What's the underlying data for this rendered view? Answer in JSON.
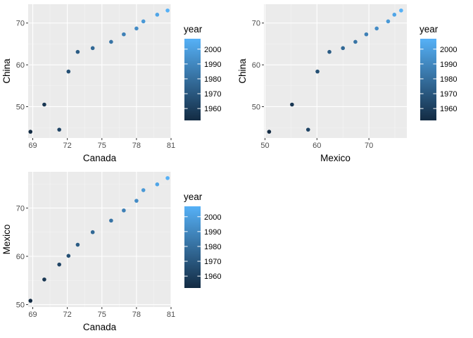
{
  "theme": {
    "panel_bg": "#ebebeb",
    "grid_major": "#ffffff",
    "grid_minor": "#f5f5f5",
    "tick_color": "#333333",
    "gradient_low": "#132b43",
    "gradient_high": "#56b1f7"
  },
  "chart_data": [
    {
      "type": "scatter",
      "xlabel": "Canada",
      "ylabel": "China",
      "xlim": [
        68.6,
        81.0
      ],
      "ylim": [
        42.5,
        74.5
      ],
      "xticks": [
        69,
        72,
        75,
        78,
        81
      ],
      "yticks": [
        50,
        60,
        70
      ],
      "color_variable": "year",
      "points": [
        {
          "x": 68.8,
          "y": 44.0,
          "year": 1952
        },
        {
          "x": 70.0,
          "y": 50.5,
          "year": 1957
        },
        {
          "x": 71.3,
          "y": 44.5,
          "year": 1962
        },
        {
          "x": 72.1,
          "y": 58.4,
          "year": 1967
        },
        {
          "x": 72.9,
          "y": 63.1,
          "year": 1972
        },
        {
          "x": 74.2,
          "y": 64.0,
          "year": 1977
        },
        {
          "x": 75.8,
          "y": 65.5,
          "year": 1982
        },
        {
          "x": 76.9,
          "y": 67.3,
          "year": 1987
        },
        {
          "x": 78.0,
          "y": 68.7,
          "year": 1992
        },
        {
          "x": 78.6,
          "y": 70.4,
          "year": 1997
        },
        {
          "x": 79.8,
          "y": 72.0,
          "year": 2002
        },
        {
          "x": 80.7,
          "y": 73.0,
          "year": 2007
        }
      ],
      "legend": {
        "title": "year",
        "range": [
          1952,
          2007
        ],
        "ticks": [
          1960,
          1970,
          1980,
          1990,
          2000
        ],
        "position": "right"
      }
    },
    {
      "type": "scatter",
      "xlabel": "Mexico",
      "ylabel": "China",
      "xlim": [
        49.8,
        77.3
      ],
      "ylim": [
        42.5,
        74.5
      ],
      "xticks": [
        50,
        60,
        70
      ],
      "yticks": [
        50,
        60,
        70
      ],
      "color_variable": "year",
      "points": [
        {
          "x": 50.8,
          "y": 44.0,
          "year": 1952
        },
        {
          "x": 55.2,
          "y": 50.5,
          "year": 1957
        },
        {
          "x": 58.3,
          "y": 44.5,
          "year": 1962
        },
        {
          "x": 60.1,
          "y": 58.4,
          "year": 1967
        },
        {
          "x": 62.4,
          "y": 63.1,
          "year": 1972
        },
        {
          "x": 65.0,
          "y": 64.0,
          "year": 1977
        },
        {
          "x": 67.4,
          "y": 65.5,
          "year": 1982
        },
        {
          "x": 69.5,
          "y": 67.3,
          "year": 1987
        },
        {
          "x": 71.5,
          "y": 68.7,
          "year": 1992
        },
        {
          "x": 73.7,
          "y": 70.4,
          "year": 1997
        },
        {
          "x": 74.9,
          "y": 72.0,
          "year": 2002
        },
        {
          "x": 76.2,
          "y": 73.0,
          "year": 2007
        }
      ],
      "legend": {
        "title": "year",
        "range": [
          1952,
          2007
        ],
        "ticks": [
          1960,
          1970,
          1980,
          1990,
          2000
        ],
        "position": "right"
      }
    },
    {
      "type": "scatter",
      "xlabel": "Canada",
      "ylabel": "Mexico",
      "xlim": [
        68.6,
        81.0
      ],
      "ylim": [
        49.5,
        77.5
      ],
      "xticks": [
        69,
        72,
        75,
        78,
        81
      ],
      "yticks": [
        50,
        60,
        70
      ],
      "color_variable": "year",
      "points": [
        {
          "x": 68.8,
          "y": 50.8,
          "year": 1952
        },
        {
          "x": 70.0,
          "y": 55.2,
          "year": 1957
        },
        {
          "x": 71.3,
          "y": 58.3,
          "year": 1962
        },
        {
          "x": 72.1,
          "y": 60.1,
          "year": 1967
        },
        {
          "x": 72.9,
          "y": 62.4,
          "year": 1972
        },
        {
          "x": 74.2,
          "y": 65.0,
          "year": 1977
        },
        {
          "x": 75.8,
          "y": 67.4,
          "year": 1982
        },
        {
          "x": 76.9,
          "y": 69.5,
          "year": 1987
        },
        {
          "x": 78.0,
          "y": 71.5,
          "year": 1992
        },
        {
          "x": 78.6,
          "y": 73.7,
          "year": 1997
        },
        {
          "x": 79.8,
          "y": 74.9,
          "year": 2002
        },
        {
          "x": 80.7,
          "y": 76.2,
          "year": 2007
        }
      ],
      "legend": {
        "title": "year",
        "range": [
          1952,
          2007
        ],
        "ticks": [
          1960,
          1970,
          1980,
          1990,
          2000
        ],
        "position": "right"
      }
    }
  ]
}
